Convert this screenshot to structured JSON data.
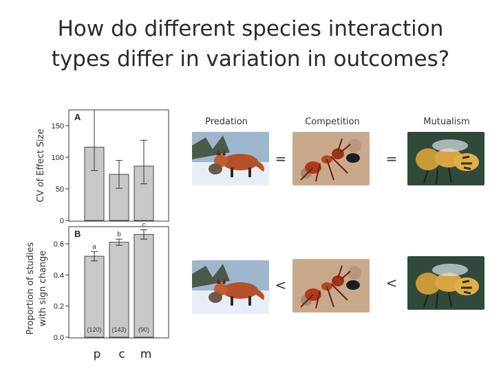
{
  "title": {
    "line1": "How do different species interaction",
    "line2": "types differ in variation in outcomes?"
  },
  "chart_data": [
    {
      "type": "bar",
      "panel_label": "A",
      "categories": [
        "p",
        "c",
        "m"
      ],
      "values": [
        116,
        73,
        86
      ],
      "error_low": [
        79,
        51,
        58
      ],
      "error_high": [
        175,
        95,
        127
      ],
      "ylabel": "CV of Effect Size",
      "ylim": [
        0,
        175
      ],
      "yticks": [
        "0",
        "50",
        "100",
        "150"
      ],
      "ytick_values": [
        0,
        50,
        100,
        150
      ],
      "bar_color": "#c8c8c8"
    },
    {
      "type": "bar",
      "panel_label": "B",
      "categories": [
        "p",
        "c",
        "m"
      ],
      "values": [
        0.52,
        0.61,
        0.66
      ],
      "error_low": [
        0.49,
        0.59,
        0.63
      ],
      "error_high": [
        0.55,
        0.63,
        0.69
      ],
      "letters": [
        "a",
        "b",
        "c"
      ],
      "sample_sizes": [
        "(120)",
        "(143)",
        "(90)"
      ],
      "ylabel_line1": "Proportion of studies",
      "ylabel_line2": "with sign change",
      "ylim": [
        0,
        0.71
      ],
      "yticks": [
        "0.0",
        "0.2",
        "0.4",
        "0.6"
      ],
      "ytick_values": [
        0,
        0.2,
        0.4,
        0.6
      ],
      "bar_color": "#c8c8c8"
    }
  ],
  "x_categories": [
    "p",
    "c",
    "m"
  ],
  "interactions": {
    "predation": "Predation",
    "competition": "Competition",
    "mutualism": "Mutualism"
  },
  "comparisons": {
    "row1_op1": "=",
    "row1_op2": "=",
    "row2_op1": "<",
    "row2_op2": "<"
  },
  "photos": {
    "predation": "fox-photo",
    "competition": "ant-photo",
    "mutualism": "bee-photo"
  }
}
